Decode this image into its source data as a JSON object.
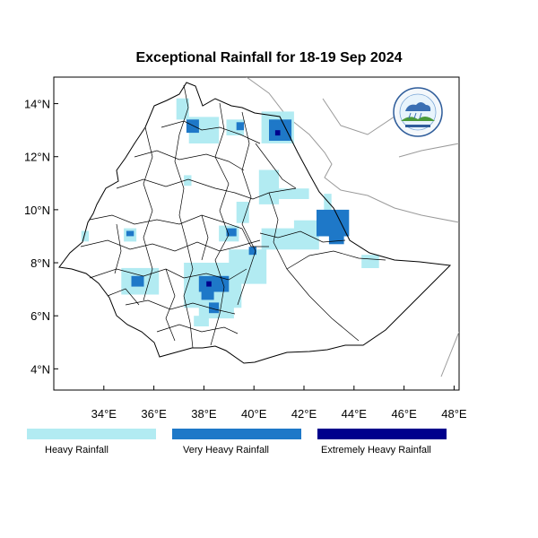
{
  "title": "Exceptional Rainfall for 18-19 Sep 2024",
  "map": {
    "lon_range": [
      32,
      48.2
    ],
    "lat_range": [
      3.2,
      15
    ],
    "x_ticks": [
      {
        "value": 34,
        "label": "34°E"
      },
      {
        "value": 36,
        "label": "36°E"
      },
      {
        "value": 38,
        "label": "38°E"
      },
      {
        "value": 40,
        "label": "40°E"
      },
      {
        "value": 42,
        "label": "42°E"
      },
      {
        "value": 44,
        "label": "44°E"
      },
      {
        "value": 46,
        "label": "46°E"
      },
      {
        "value": 48,
        "label": "48°E"
      }
    ],
    "y_ticks": [
      {
        "value": 4,
        "label": "4°N"
      },
      {
        "value": 6,
        "label": "6°N"
      },
      {
        "value": 8,
        "label": "8°N"
      },
      {
        "value": 10,
        "label": "10°N"
      },
      {
        "value": 12,
        "label": "12°N"
      },
      {
        "value": 14,
        "label": "14°N"
      }
    ],
    "categories": [
      {
        "key": "heavy",
        "label": "Heavy Rainfall",
        "color": "#b2ebf2"
      },
      {
        "key": "very_heavy",
        "label": "Very Heavy Rainfall",
        "color": "#1e78c8"
      },
      {
        "key": "extreme",
        "label": "Extremely Heavy Rainfall",
        "color": "#00008c"
      }
    ],
    "rainfall_areas": [
      {
        "category": "heavy",
        "lon": [
          36.9,
          37.4
        ],
        "lat": [
          13.4,
          14.2
        ]
      },
      {
        "category": "heavy",
        "lon": [
          37.4,
          38.6
        ],
        "lat": [
          12.5,
          13.5
        ]
      },
      {
        "category": "heavy",
        "lon": [
          38.9,
          39.6
        ],
        "lat": [
          12.8,
          13.4
        ]
      },
      {
        "category": "heavy",
        "lon": [
          40.3,
          41.6
        ],
        "lat": [
          12.5,
          13.7
        ]
      },
      {
        "category": "heavy",
        "lon": [
          40.2,
          41.0
        ],
        "lat": [
          10.2,
          11.5
        ]
      },
      {
        "category": "heavy",
        "lon": [
          41.0,
          42.2
        ],
        "lat": [
          10.4,
          10.8
        ]
      },
      {
        "category": "heavy",
        "lon": [
          42.8,
          43.1
        ],
        "lat": [
          9.7,
          10.6
        ]
      },
      {
        "category": "heavy",
        "lon": [
          37.2,
          37.5
        ],
        "lat": [
          10.9,
          11.3
        ]
      },
      {
        "category": "heavy",
        "lon": [
          39.3,
          39.8
        ],
        "lat": [
          9.5,
          10.3
        ]
      },
      {
        "category": "heavy",
        "lon": [
          38.6,
          39.4
        ],
        "lat": [
          8.8,
          9.4
        ]
      },
      {
        "category": "heavy",
        "lon": [
          34.8,
          35.3
        ],
        "lat": [
          8.8,
          9.3
        ]
      },
      {
        "category": "heavy",
        "lon": [
          40.3,
          42.6
        ],
        "lat": [
          8.5,
          9.3
        ]
      },
      {
        "category": "heavy",
        "lon": [
          41.6,
          43.2
        ],
        "lat": [
          9.0,
          9.6
        ]
      },
      {
        "category": "heavy",
        "lon": [
          44.3,
          45.0
        ],
        "lat": [
          7.8,
          8.3
        ]
      },
      {
        "category": "heavy",
        "lon": [
          39.0,
          40.5
        ],
        "lat": [
          7.2,
          8.5
        ]
      },
      {
        "category": "heavy",
        "lon": [
          34.7,
          36.2
        ],
        "lat": [
          6.8,
          7.8
        ]
      },
      {
        "category": "heavy",
        "lon": [
          37.2,
          39.5
        ],
        "lat": [
          6.3,
          8.0
        ]
      },
      {
        "category": "heavy",
        "lon": [
          37.8,
          39.2
        ],
        "lat": [
          5.9,
          6.5
        ]
      },
      {
        "category": "heavy",
        "lon": [
          37.6,
          38.2
        ],
        "lat": [
          5.6,
          6.0
        ]
      },
      {
        "category": "heavy",
        "lon": [
          33.1,
          33.4
        ],
        "lat": [
          8.8,
          9.2
        ]
      },
      {
        "category": "very_heavy",
        "lon": [
          37.3,
          37.8
        ],
        "lat": [
          12.9,
          13.4
        ]
      },
      {
        "category": "very_heavy",
        "lon": [
          39.3,
          39.6
        ],
        "lat": [
          13.0,
          13.3
        ]
      },
      {
        "category": "very_heavy",
        "lon": [
          40.6,
          41.5
        ],
        "lat": [
          12.6,
          13.4
        ]
      },
      {
        "category": "very_heavy",
        "lon": [
          42.5,
          43.8
        ],
        "lat": [
          9.0,
          10.0
        ]
      },
      {
        "category": "very_heavy",
        "lon": [
          43.0,
          43.6
        ],
        "lat": [
          8.7,
          9.2
        ]
      },
      {
        "category": "very_heavy",
        "lon": [
          35.1,
          35.6
        ],
        "lat": [
          7.1,
          7.5
        ]
      },
      {
        "category": "very_heavy",
        "lon": [
          37.8,
          39.0
        ],
        "lat": [
          6.9,
          7.5
        ]
      },
      {
        "category": "very_heavy",
        "lon": [
          37.9,
          38.4
        ],
        "lat": [
          6.6,
          7.0
        ]
      },
      {
        "category": "very_heavy",
        "lon": [
          38.2,
          38.6
        ],
        "lat": [
          6.1,
          6.5
        ]
      },
      {
        "category": "very_heavy",
        "lon": [
          38.9,
          39.3
        ],
        "lat": [
          9.0,
          9.3
        ]
      },
      {
        "category": "very_heavy",
        "lon": [
          39.8,
          40.1
        ],
        "lat": [
          8.3,
          8.6
        ]
      },
      {
        "category": "very_heavy",
        "lon": [
          34.9,
          35.2
        ],
        "lat": [
          9.0,
          9.2
        ]
      },
      {
        "category": "extreme",
        "lon": [
          40.85,
          41.05
        ],
        "lat": [
          12.8,
          13.0
        ]
      },
      {
        "category": "extreme",
        "lon": [
          38.1,
          38.3
        ],
        "lat": [
          7.1,
          7.3
        ]
      }
    ]
  }
}
